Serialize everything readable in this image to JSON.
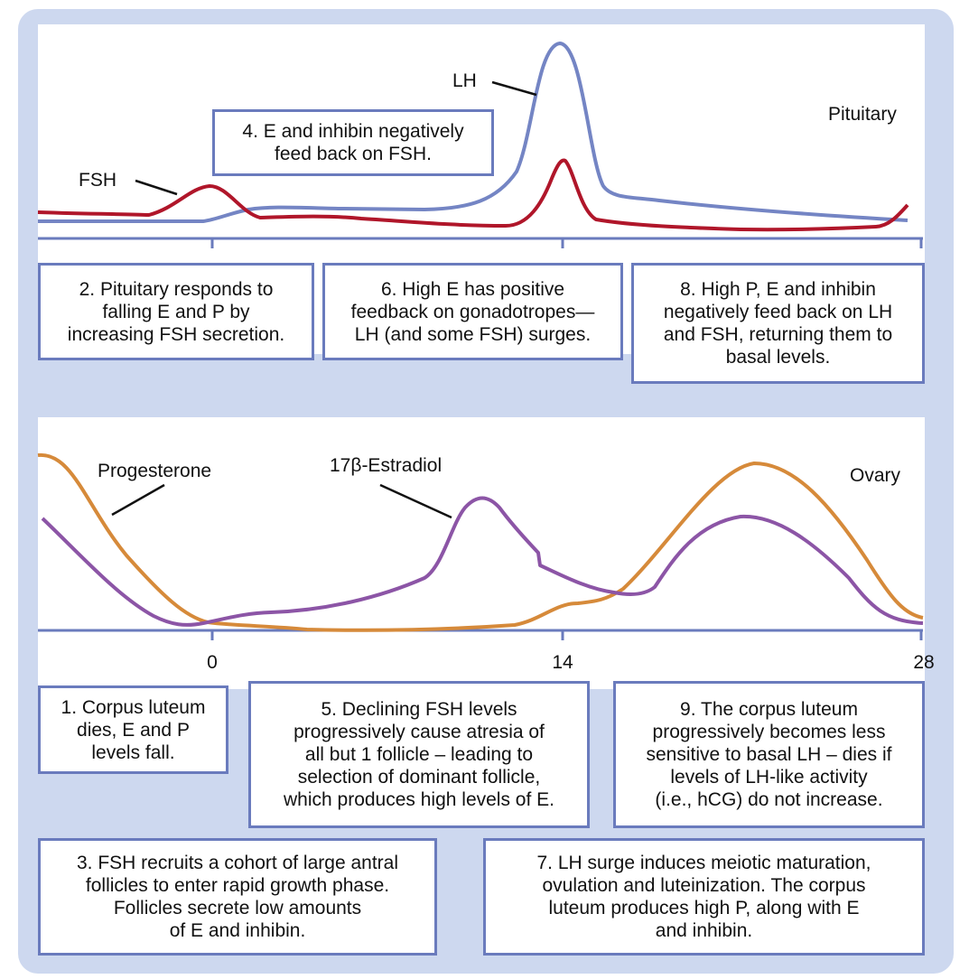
{
  "colors": {
    "background_panel": "#cdd8ef",
    "box_border": "#6a7bbd",
    "lh": "#7485c4",
    "fsh": "#b0162a",
    "progesterone": "#d68a3a",
    "estradiol": "#8c55a6",
    "axis": "#6a7bbd"
  },
  "pituitary": {
    "region_label": "Pituitary",
    "lh_label": "LH",
    "fsh_label": "FSH"
  },
  "ovary": {
    "region_label": "Ovary",
    "progesterone_label": "Progesterone",
    "estradiol_label": "17β-Estradiol"
  },
  "axis": {
    "ticks": [
      "0",
      "14",
      "28"
    ]
  },
  "notes": {
    "n1": "1. Corpus luteum\ndies, E and P\nlevels fall.",
    "n2": "2. Pituitary responds to\nfalling E and P by\nincreasing FSH secretion.",
    "n3": "3. FSH recruits a cohort of large antral\nfollicles to enter rapid growth phase.\nFollicles secrete low amounts\nof E and inhibin.",
    "n4": "4. E and inhibin negatively\nfeed back on FSH.",
    "n5": "5. Declining FSH levels\nprogressively cause atresia of\nall but 1 follicle – leading to\nselection of dominant follicle,\nwhich produces high levels of E.",
    "n6": "6. High E has positive\nfeedback on gonadotropes—\nLH (and some FSH) surges.",
    "n7": "7. LH surge induces meiotic maturation,\novulation and luteinization.  The corpus\nluteum produces high P, along with E\nand inhibin.",
    "n8": "8. High P, E and inhibin\nnegatively feed back on LH\nand FSH, returning them to\nbasal levels.",
    "n9": "9. The corpus luteum\nprogressively becomes less\nsensitive to basal LH – dies if\nlevels of LH-like activity\n(i.e., hCG) do not increase."
  }
}
